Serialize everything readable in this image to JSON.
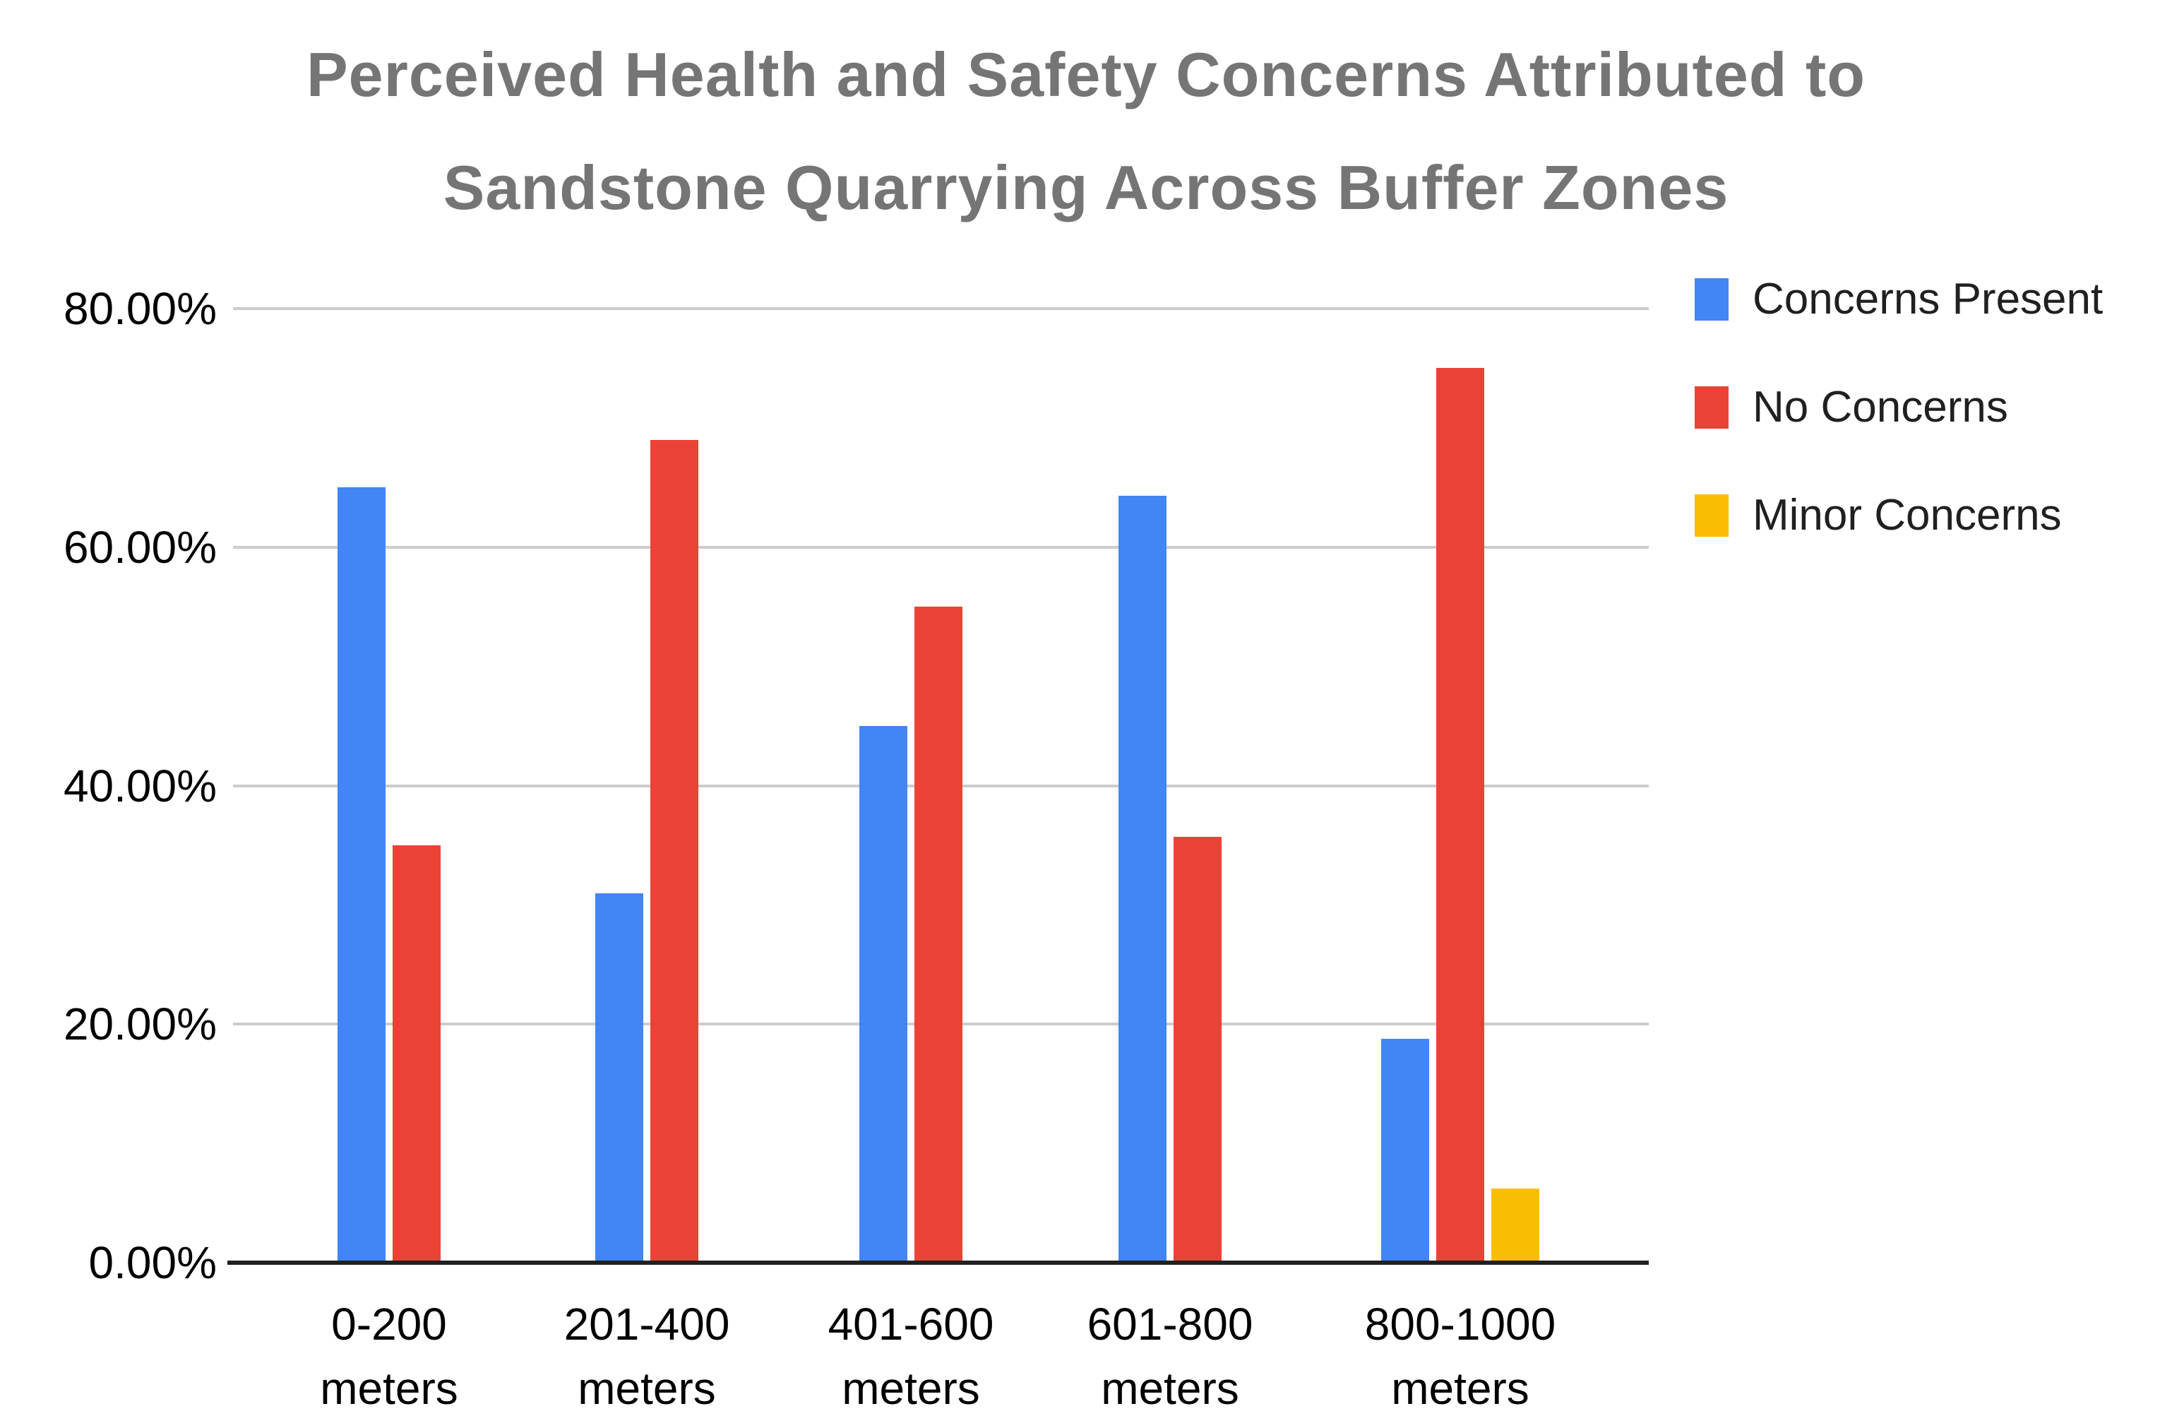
{
  "title": {
    "line1": "Perceived Health and Safety Concerns Attributed to",
    "line2": "Sandstone Quarrying Across Buffer Zones"
  },
  "colors": {
    "series_blue": "#4285F4",
    "series_red": "#EA4335",
    "series_yellow": "#FBBC04",
    "title_text": "#757575",
    "gridline": "#cccccc",
    "axis_line": "#212121",
    "background": "#ffffff"
  },
  "chart_data": {
    "type": "bar",
    "title": "Perceived Health and Safety Concerns Attributed to Sandstone Quarrying Across Buffer Zones",
    "categories": [
      "0-200",
      "201-400",
      "401-600",
      "601-800",
      "800-1000"
    ],
    "x_unit": "meters",
    "series": [
      {
        "name": "Concerns Present",
        "color": "#4285F4",
        "values": [
          65,
          31,
          45,
          64.3,
          18.75
        ]
      },
      {
        "name": "No Concerns",
        "color": "#EA4335",
        "values": [
          35,
          69,
          55,
          35.7,
          75
        ]
      },
      {
        "name": "Minor Concerns",
        "color": "#FBBC04",
        "values": [
          null,
          null,
          null,
          null,
          6.25
        ]
      }
    ],
    "xlabel": "",
    "ylabel": "",
    "ylim": [
      0,
      80
    ],
    "yticks": [
      {
        "value": 80,
        "label": "80.00%"
      },
      {
        "value": 60,
        "label": "60.00%"
      },
      {
        "value": 40,
        "label": "40.00%"
      },
      {
        "value": 20,
        "label": "20.00%"
      },
      {
        "value": 0,
        "label": "0.00%"
      }
    ],
    "grid": true,
    "legend_position": "right"
  }
}
